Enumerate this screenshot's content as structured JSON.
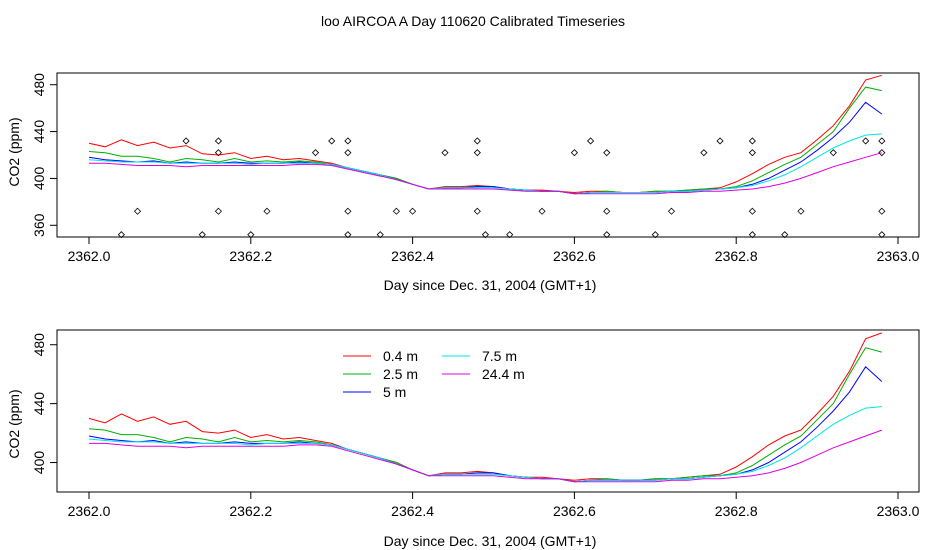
{
  "figure": {
    "title": "loo AIRCOA A  Day 110620  Calibrated Timeseries"
  },
  "chart_data": [
    {
      "type": "line",
      "xlabel": "Day since Dec. 31, 2004 (GMT+1)",
      "ylabel": "CO2 (ppm)",
      "xlim": [
        2362.0,
        2363.0
      ],
      "ylim": [
        350,
        490
      ],
      "x_ticks": [
        "2362.0",
        "2362.2",
        "2362.4",
        "2362.6",
        "2362.8",
        "2363.0"
      ],
      "y_ticks": [
        "360",
        "400",
        "440",
        "480"
      ],
      "grid": false,
      "x": [
        2362.0,
        2362.02,
        2362.04,
        2362.06,
        2362.08,
        2362.1,
        2362.12,
        2362.14,
        2362.16,
        2362.18,
        2362.2,
        2362.22,
        2362.24,
        2362.26,
        2362.28,
        2362.3,
        2362.32,
        2362.34,
        2362.36,
        2362.38,
        2362.4,
        2362.42,
        2362.44,
        2362.46,
        2362.48,
        2362.5,
        2362.52,
        2362.54,
        2362.56,
        2362.58,
        2362.6,
        2362.62,
        2362.64,
        2362.66,
        2362.68,
        2362.7,
        2362.72,
        2362.74,
        2362.76,
        2362.78,
        2362.8,
        2362.82,
        2362.84,
        2362.86,
        2362.88,
        2362.9,
        2362.92,
        2362.94,
        2362.96,
        2362.98
      ],
      "series": [
        {
          "color": "#ff0000",
          "values": [
            430,
            427,
            433,
            428,
            431,
            426,
            428,
            421,
            420,
            422,
            417,
            419,
            416,
            417,
            415,
            413,
            409,
            406,
            403,
            400,
            395,
            391,
            393,
            393,
            394,
            393,
            391,
            390,
            390,
            389,
            388,
            389,
            389,
            388,
            388,
            389,
            389,
            390,
            391,
            392,
            397,
            404,
            412,
            418,
            422,
            433,
            445,
            462,
            484,
            488
          ]
        },
        {
          "color": "#00b000",
          "values": [
            423,
            422,
            419,
            419,
            417,
            414,
            417,
            416,
            414,
            417,
            414,
            415,
            414,
            415,
            414,
            412,
            409,
            406,
            403,
            400,
            395,
            391,
            392,
            392,
            393,
            393,
            391,
            390,
            389,
            389,
            387,
            388,
            389,
            388,
            388,
            389,
            389,
            390,
            391,
            391,
            393,
            398,
            405,
            412,
            418,
            429,
            440,
            460,
            478,
            475
          ]
        },
        {
          "color": "#0000ff",
          "values": [
            418,
            416,
            415,
            414,
            415,
            413,
            414,
            413,
            413,
            414,
            413,
            413,
            413,
            414,
            413,
            412,
            409,
            406,
            403,
            399,
            395,
            391,
            392,
            392,
            393,
            393,
            391,
            390,
            389,
            389,
            387,
            388,
            388,
            388,
            388,
            388,
            389,
            389,
            390,
            391,
            392,
            395,
            400,
            407,
            414,
            424,
            435,
            448,
            465,
            455
          ]
        },
        {
          "color": "#00e5e5",
          "values": [
            416,
            415,
            414,
            414,
            414,
            413,
            413,
            413,
            413,
            413,
            412,
            413,
            413,
            413,
            413,
            412,
            409,
            406,
            403,
            399,
            395,
            391,
            392,
            392,
            392,
            392,
            391,
            390,
            389,
            389,
            387,
            388,
            388,
            388,
            388,
            388,
            389,
            389,
            390,
            391,
            392,
            394,
            398,
            403,
            410,
            418,
            426,
            432,
            437,
            438
          ]
        },
        {
          "color": "#e000e0",
          "values": [
            413,
            413,
            412,
            411,
            411,
            411,
            410,
            411,
            411,
            411,
            411,
            411,
            411,
            412,
            412,
            411,
            408,
            405,
            402,
            399,
            395,
            391,
            391,
            391,
            391,
            391,
            390,
            389,
            389,
            389,
            387,
            387,
            387,
            387,
            387,
            387,
            388,
            388,
            389,
            389,
            390,
            391,
            393,
            396,
            400,
            405,
            410,
            414,
            418,
            422
          ]
        }
      ],
      "markers": {
        "symbol": "open-diamond",
        "x": [
          2362.04,
          2362.06,
          2362.12,
          2362.14,
          2362.16,
          2362.16,
          2362.16,
          2362.2,
          2362.22,
          2362.28,
          2362.3,
          2362.32,
          2362.32,
          2362.32,
          2362.32,
          2362.36,
          2362.38,
          2362.4,
          2362.44,
          2362.48,
          2362.48,
          2362.48,
          2362.49,
          2362.52,
          2362.56,
          2362.6,
          2362.62,
          2362.64,
          2362.64,
          2362.64,
          2362.7,
          2362.72,
          2362.76,
          2362.78,
          2362.82,
          2362.82,
          2362.82,
          2362.82,
          2362.86,
          2362.88,
          2362.92,
          2362.96,
          2362.98,
          2362.98,
          2362.98,
          2362.98
        ],
        "y": [
          352,
          372,
          432,
          352,
          422,
          372,
          432,
          352,
          372,
          422,
          432,
          422,
          432,
          372,
          352,
          352,
          372,
          372,
          422,
          432,
          422,
          372,
          352,
          352,
          372,
          422,
          432,
          422,
          372,
          352,
          352,
          372,
          422,
          432,
          432,
          422,
          372,
          352,
          352,
          372,
          422,
          432,
          432,
          422,
          372,
          352
        ]
      }
    },
    {
      "type": "line",
      "xlabel": "Day since Dec. 31, 2004 (GMT+1)",
      "ylabel": "CO2 (ppm)",
      "xlim": [
        2362.0,
        2363.0
      ],
      "ylim": [
        380,
        490
      ],
      "x_ticks": [
        "2362.0",
        "2362.2",
        "2362.4",
        "2362.6",
        "2362.8",
        "2363.0"
      ],
      "y_ticks": [
        "400",
        "440",
        "480"
      ],
      "grid": false,
      "legend_position": "top-left",
      "x": [
        2362.0,
        2362.02,
        2362.04,
        2362.06,
        2362.08,
        2362.1,
        2362.12,
        2362.14,
        2362.16,
        2362.18,
        2362.2,
        2362.22,
        2362.24,
        2362.26,
        2362.28,
        2362.3,
        2362.32,
        2362.34,
        2362.36,
        2362.38,
        2362.4,
        2362.42,
        2362.44,
        2362.46,
        2362.48,
        2362.5,
        2362.52,
        2362.54,
        2362.56,
        2362.58,
        2362.6,
        2362.62,
        2362.64,
        2362.66,
        2362.68,
        2362.7,
        2362.72,
        2362.74,
        2362.76,
        2362.78,
        2362.8,
        2362.82,
        2362.84,
        2362.86,
        2362.88,
        2362.9,
        2362.92,
        2362.94,
        2362.96,
        2362.98
      ],
      "series": [
        {
          "name": "0.4 m",
          "color": "#ff0000",
          "values": [
            430,
            427,
            433,
            428,
            431,
            426,
            428,
            421,
            420,
            422,
            417,
            419,
            416,
            417,
            415,
            413,
            409,
            406,
            403,
            400,
            395,
            391,
            393,
            393,
            394,
            393,
            391,
            390,
            390,
            389,
            388,
            389,
            389,
            388,
            388,
            389,
            389,
            390,
            391,
            392,
            397,
            404,
            412,
            418,
            422,
            433,
            445,
            462,
            484,
            488
          ]
        },
        {
          "name": "2.5 m",
          "color": "#00b000",
          "values": [
            423,
            422,
            419,
            419,
            417,
            414,
            417,
            416,
            414,
            417,
            414,
            415,
            414,
            415,
            414,
            412,
            409,
            406,
            403,
            400,
            395,
            391,
            392,
            392,
            393,
            393,
            391,
            390,
            389,
            389,
            387,
            388,
            389,
            388,
            388,
            389,
            389,
            390,
            391,
            391,
            393,
            398,
            405,
            412,
            418,
            429,
            440,
            460,
            478,
            475
          ]
        },
        {
          "name": "5 m",
          "color": "#0000ff",
          "values": [
            418,
            416,
            415,
            414,
            415,
            413,
            414,
            413,
            413,
            414,
            413,
            413,
            413,
            414,
            413,
            412,
            409,
            406,
            403,
            399,
            395,
            391,
            392,
            392,
            393,
            393,
            391,
            390,
            389,
            389,
            387,
            388,
            388,
            388,
            388,
            388,
            389,
            389,
            390,
            391,
            392,
            395,
            400,
            407,
            414,
            424,
            435,
            448,
            465,
            455
          ]
        },
        {
          "name": "7.5 m",
          "color": "#00e5e5",
          "values": [
            416,
            415,
            414,
            414,
            414,
            413,
            413,
            413,
            413,
            413,
            412,
            413,
            413,
            413,
            413,
            412,
            409,
            406,
            403,
            399,
            395,
            391,
            392,
            392,
            392,
            392,
            391,
            390,
            389,
            389,
            387,
            388,
            388,
            388,
            388,
            388,
            389,
            389,
            390,
            391,
            392,
            394,
            398,
            403,
            410,
            418,
            426,
            432,
            437,
            438
          ]
        },
        {
          "name": "24.4 m",
          "color": "#e000e0",
          "values": [
            413,
            413,
            412,
            411,
            411,
            411,
            410,
            411,
            411,
            411,
            411,
            411,
            411,
            412,
            412,
            411,
            408,
            405,
            402,
            399,
            395,
            391,
            391,
            391,
            391,
            391,
            390,
            389,
            389,
            389,
            387,
            387,
            387,
            387,
            387,
            387,
            388,
            388,
            389,
            389,
            390,
            391,
            393,
            396,
            400,
            405,
            410,
            414,
            418,
            422
          ]
        }
      ]
    }
  ]
}
